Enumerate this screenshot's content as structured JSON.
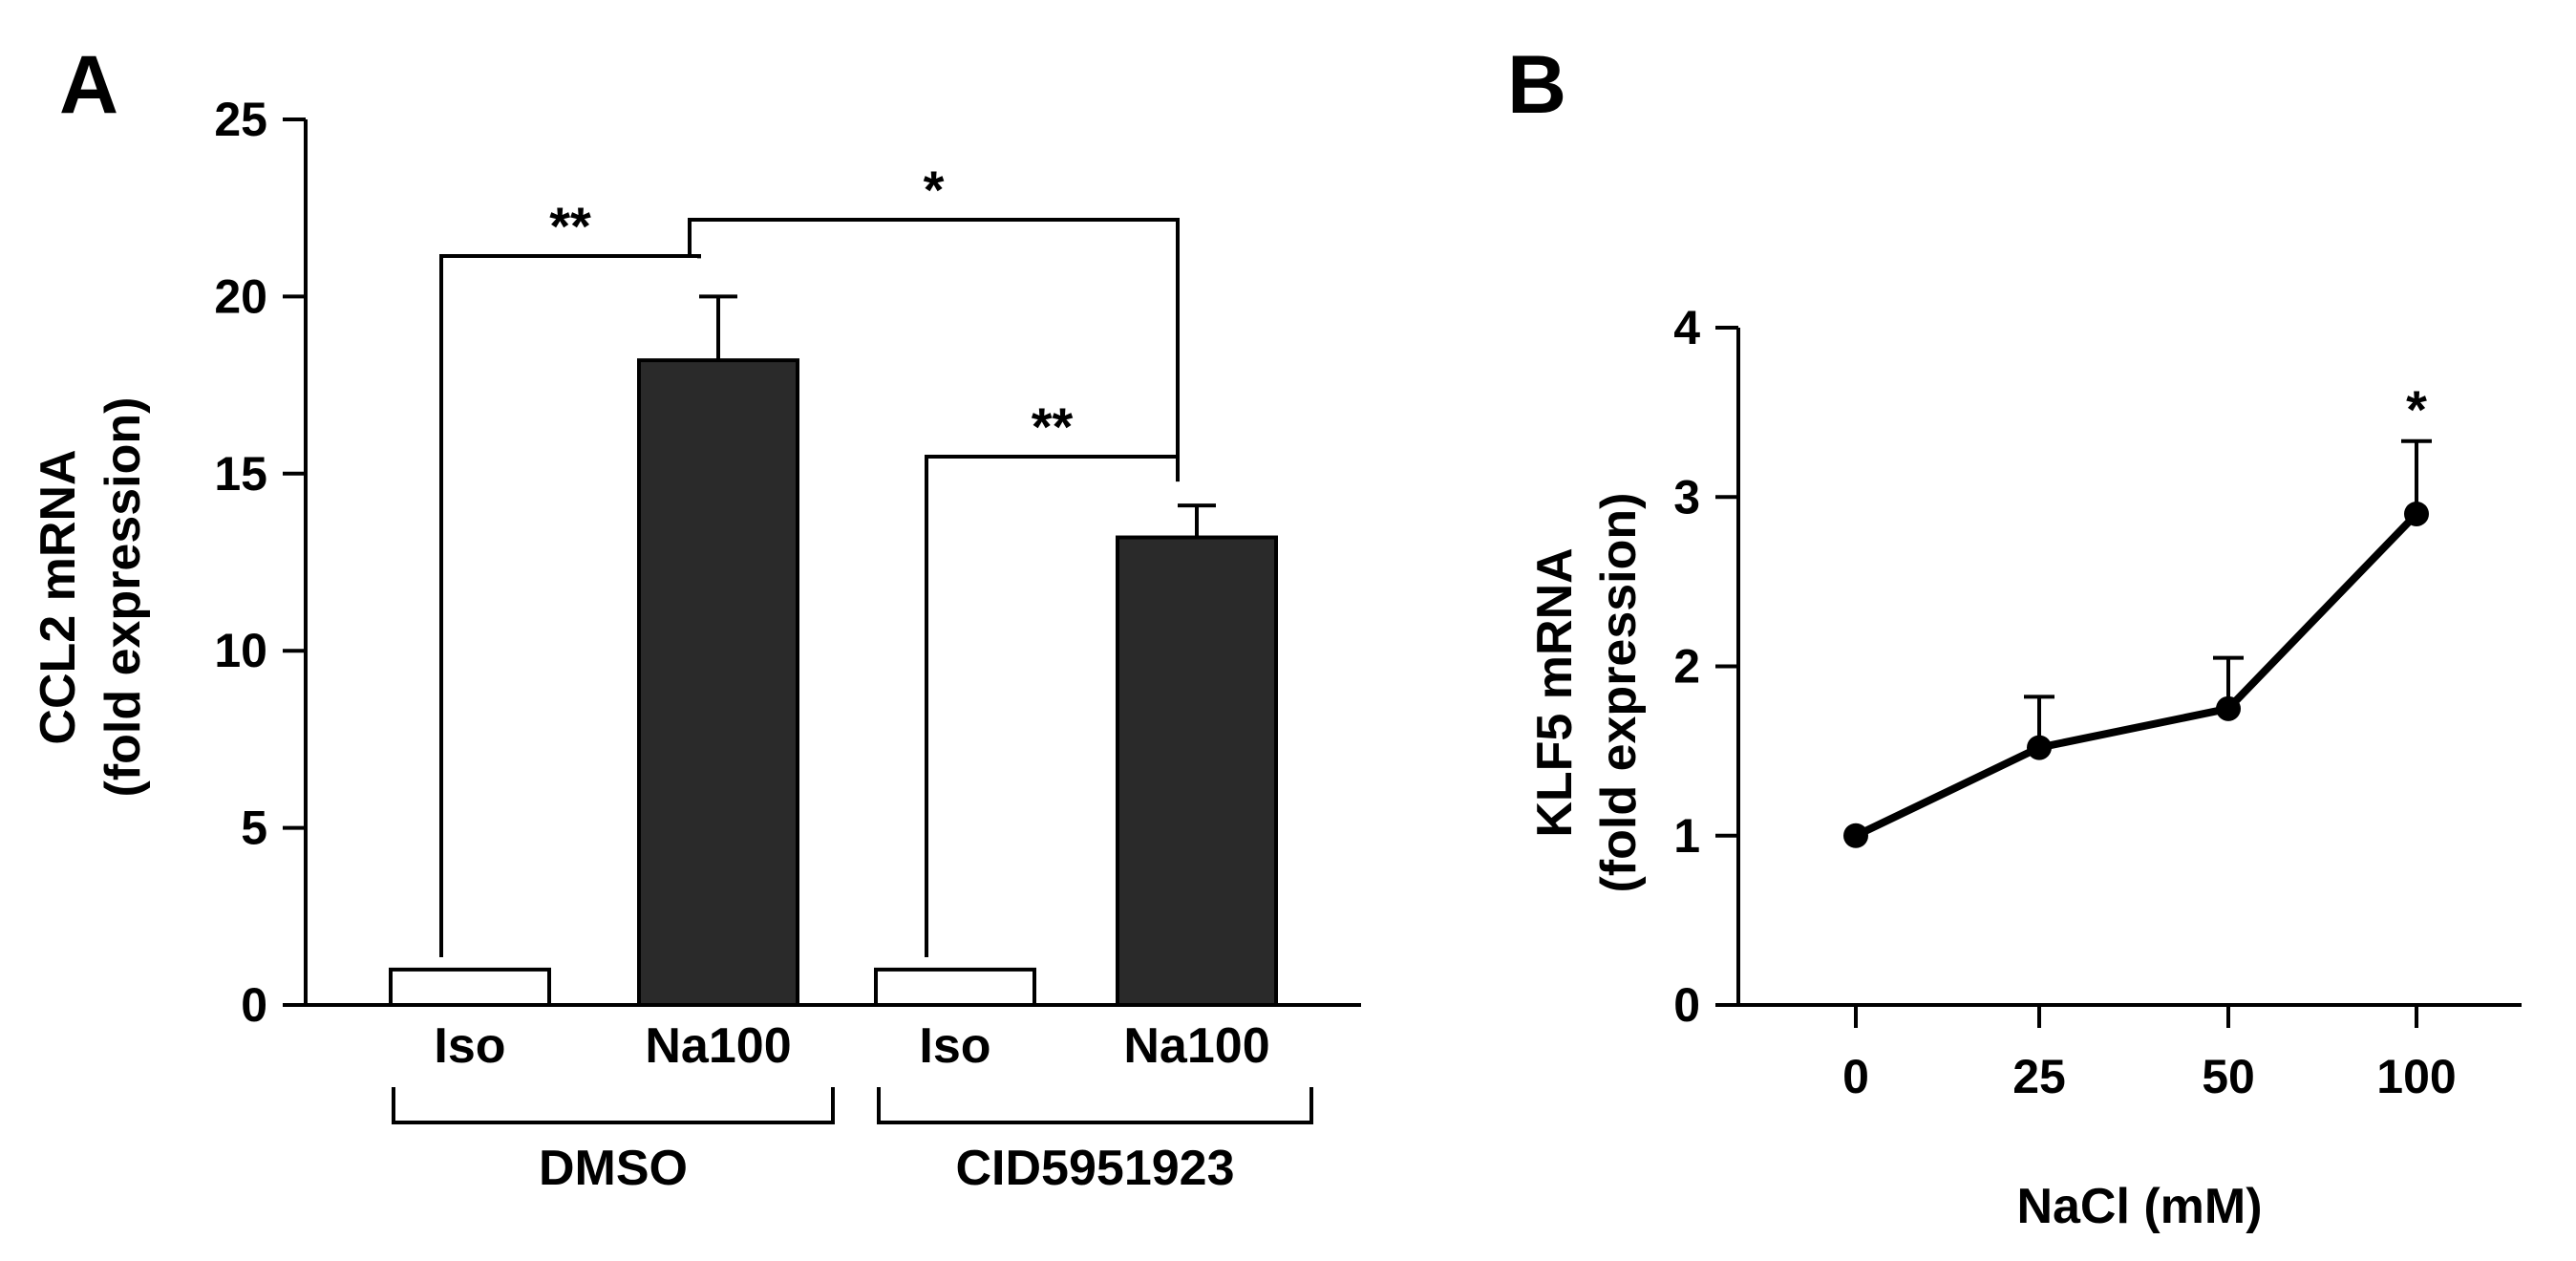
{
  "chart_data": [
    {
      "panel": "A",
      "type": "bar",
      "ylabel": "CCL2 mRNA",
      "ylabel2": "(fold expression)",
      "ylim": [
        0,
        25
      ],
      "yticks": [
        "0",
        "5",
        "10",
        "15",
        "20",
        "25"
      ],
      "categories": [
        "Iso",
        "Na100",
        "Iso",
        "Na100"
      ],
      "values": [
        1,
        18.2,
        1,
        13.2
      ],
      "errors": [
        0,
        1.8,
        0,
        0.9
      ],
      "bar_colors": [
        "#ffffff",
        "#2a2a2a",
        "#ffffff",
        "#2a2a2a"
      ],
      "groups": [
        {
          "label": "DMSO",
          "members": [
            0,
            1
          ]
        },
        {
          "label": "CID5951923",
          "members": [
            2,
            3
          ]
        }
      ],
      "significance": [
        {
          "from": 0,
          "to": 1,
          "label": "**"
        },
        {
          "from": 1,
          "to": 3,
          "label": "*"
        },
        {
          "from": 2,
          "to": 3,
          "label": "**"
        }
      ]
    },
    {
      "panel": "B",
      "type": "line",
      "xlabel": "NaCl (mM)",
      "ylabel": "KLF5 mRNA",
      "ylabel2": "(fold expression)",
      "ylim": [
        0,
        4
      ],
      "yticks": [
        "0",
        "1",
        "2",
        "3",
        "4"
      ],
      "x": [
        "0",
        "25",
        "50",
        "100"
      ],
      "values": [
        1,
        1.52,
        1.75,
        2.9
      ],
      "errors": [
        0,
        0.3,
        0.3,
        0.43
      ],
      "annotations": [
        {
          "index": 3,
          "label": "*"
        }
      ]
    }
  ]
}
